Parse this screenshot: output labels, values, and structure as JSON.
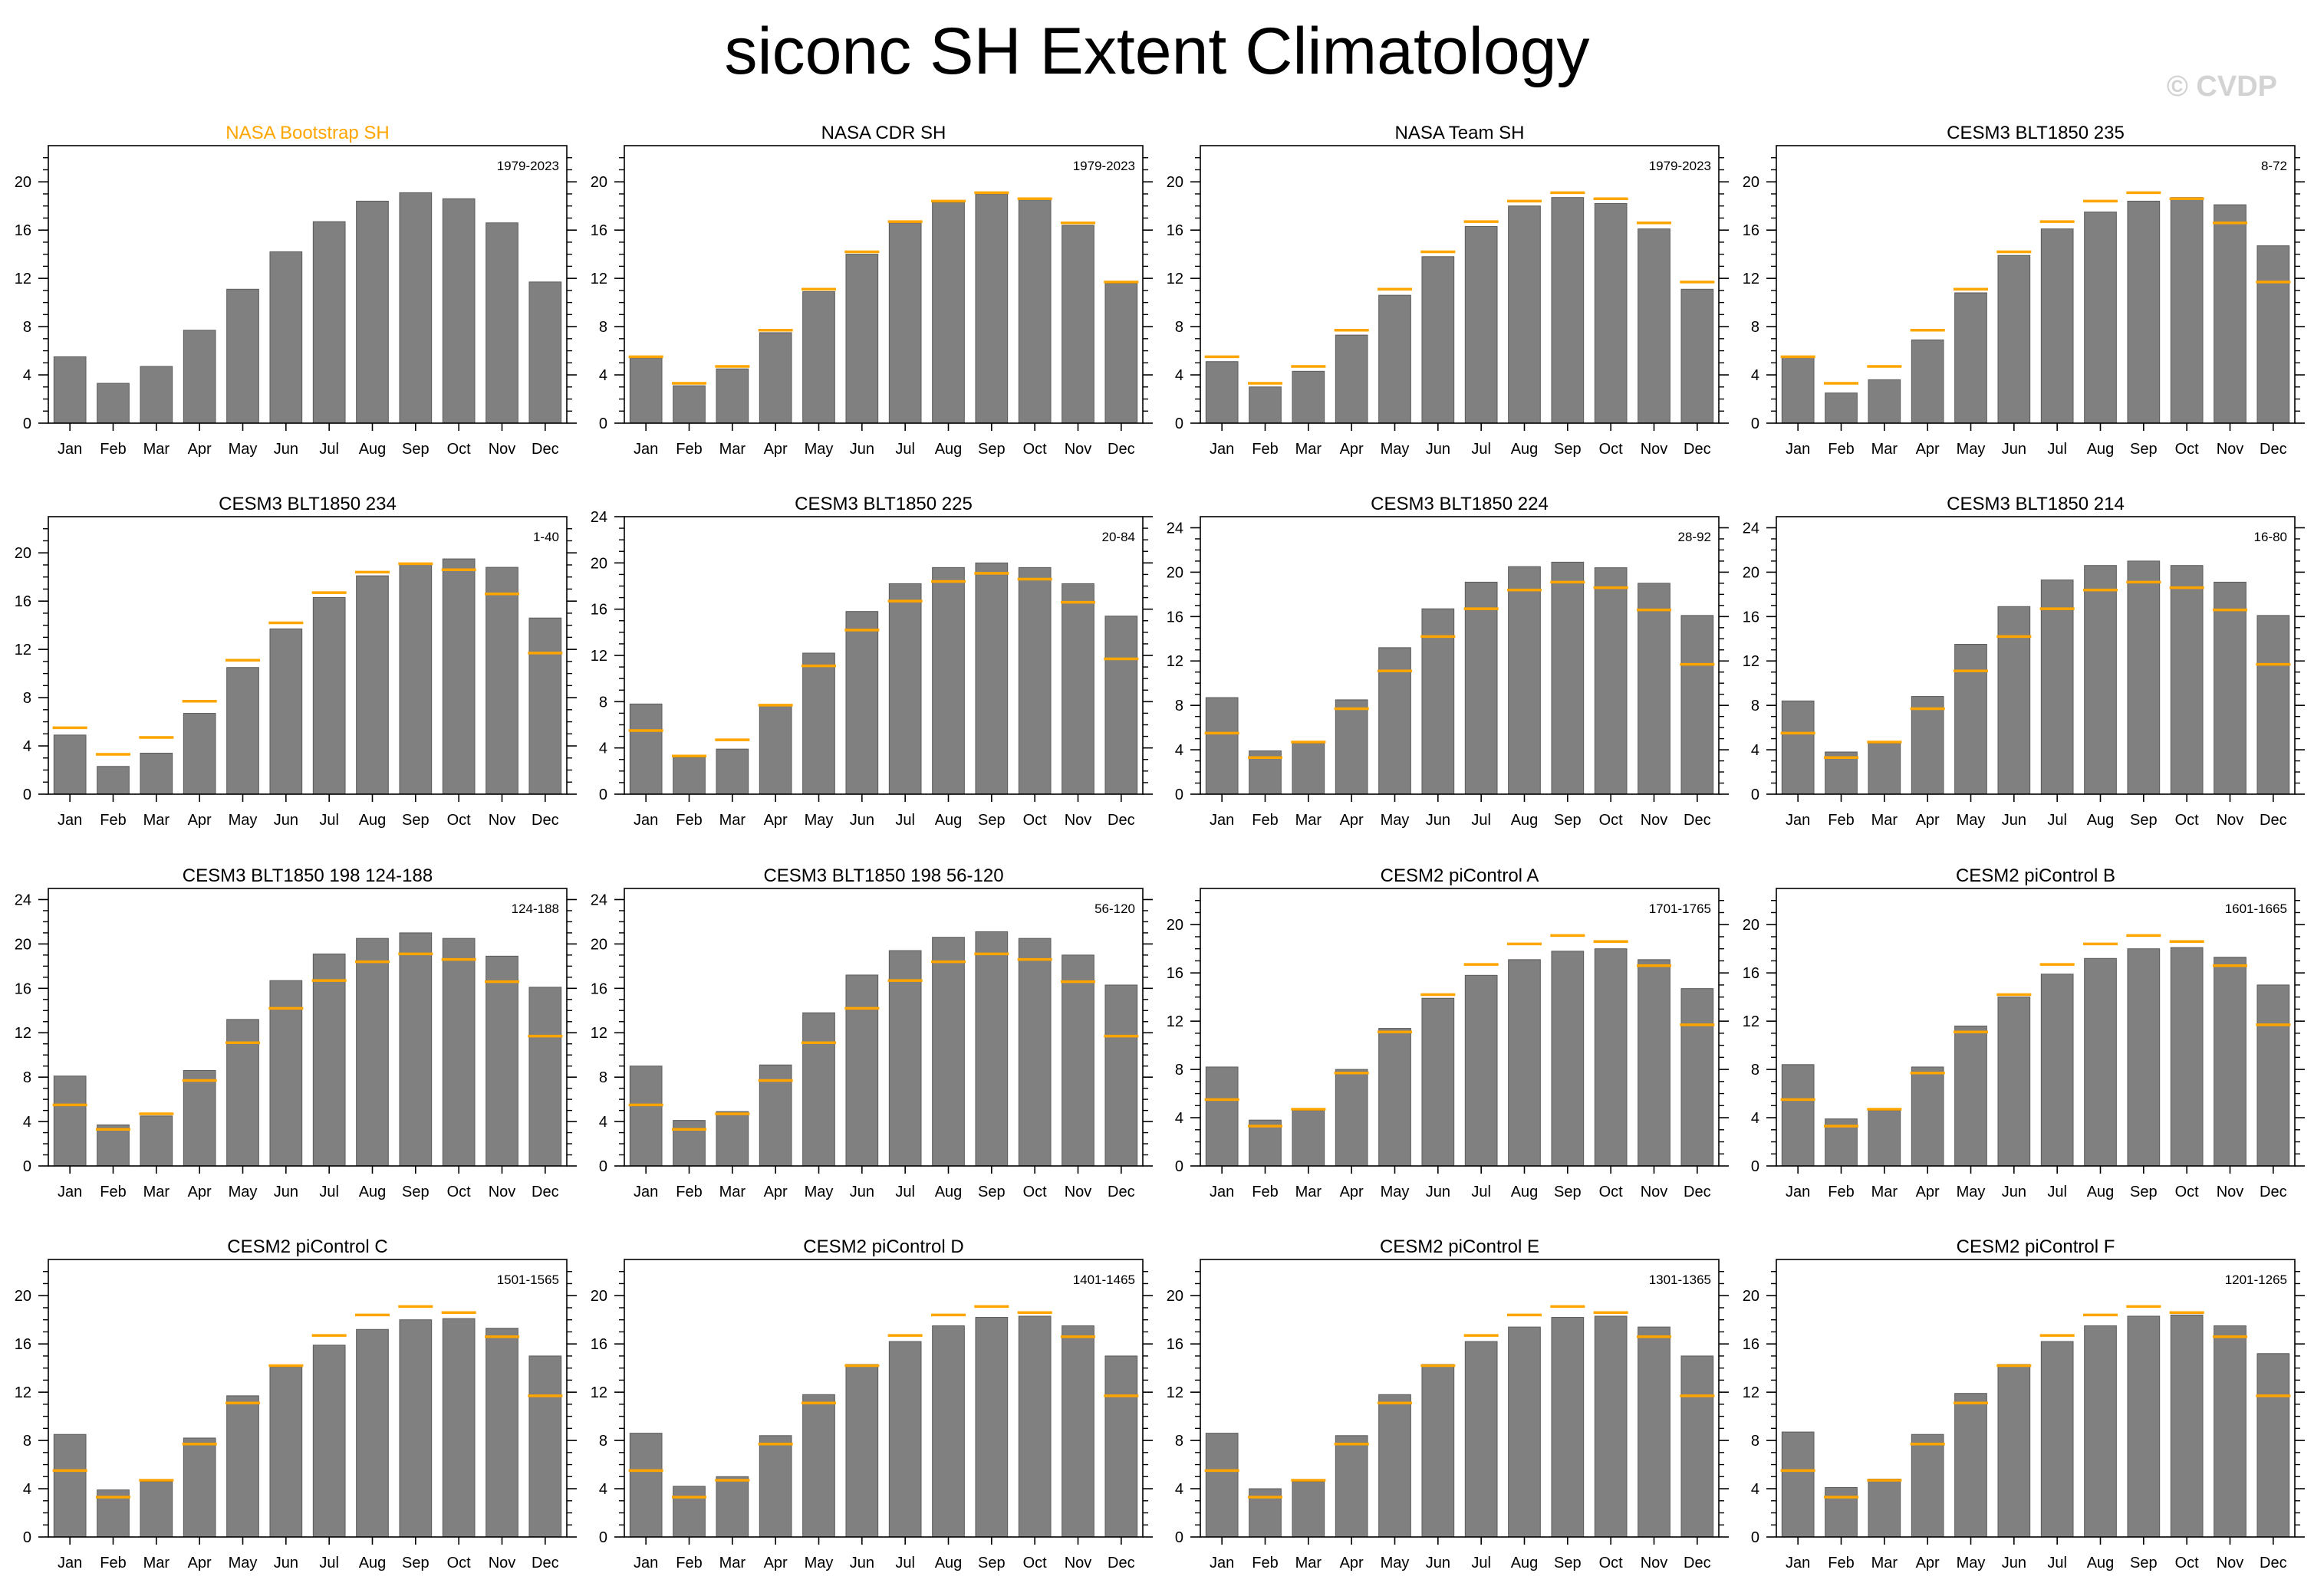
{
  "title": "siconc SH Extent Climatology",
  "watermark": "© CVDP",
  "colors": {
    "bar": "#808080",
    "reference": "#FFA500",
    "highlight_title": "#FFA500",
    "axis": "#000000"
  },
  "chart_data": [
    {
      "type": "bar",
      "title": "NASA Bootstrap SH",
      "years": "1979-2023",
      "categories": [
        "Jan",
        "Feb",
        "Mar",
        "Apr",
        "May",
        "Jun",
        "Jul",
        "Aug",
        "Sep",
        "Oct",
        "Nov",
        "Dec"
      ],
      "values": [
        5.5,
        3.3,
        4.7,
        7.7,
        11.1,
        14.2,
        16.7,
        18.4,
        19.1,
        18.6,
        16.6,
        11.7
      ],
      "reference": [],
      "ylim": [
        0,
        23
      ],
      "yticks": [
        0,
        4,
        8,
        12,
        16,
        20
      ],
      "title_highlight": true
    },
    {
      "type": "bar",
      "title": "NASA CDR SH",
      "years": "1979-2023",
      "categories": [
        "Jan",
        "Feb",
        "Mar",
        "Apr",
        "May",
        "Jun",
        "Jul",
        "Aug",
        "Sep",
        "Oct",
        "Nov",
        "Dec"
      ],
      "values": [
        5.4,
        3.1,
        4.5,
        7.5,
        10.9,
        14.0,
        16.6,
        18.3,
        19.0,
        18.5,
        16.4,
        11.6
      ],
      "reference": [
        5.5,
        3.3,
        4.7,
        7.7,
        11.1,
        14.2,
        16.7,
        18.4,
        19.1,
        18.6,
        16.6,
        11.7
      ],
      "ylim": [
        0,
        23
      ],
      "yticks": [
        0,
        4,
        8,
        12,
        16,
        20
      ]
    },
    {
      "type": "bar",
      "title": "NASA Team SH",
      "years": "1979-2023",
      "categories": [
        "Jan",
        "Feb",
        "Mar",
        "Apr",
        "May",
        "Jun",
        "Jul",
        "Aug",
        "Sep",
        "Oct",
        "Nov",
        "Dec"
      ],
      "values": [
        5.1,
        3.0,
        4.3,
        7.3,
        10.6,
        13.8,
        16.3,
        18.0,
        18.7,
        18.2,
        16.1,
        11.1
      ],
      "reference": [
        5.5,
        3.3,
        4.7,
        7.7,
        11.1,
        14.2,
        16.7,
        18.4,
        19.1,
        18.6,
        16.6,
        11.7
      ],
      "ylim": [
        0,
        23
      ],
      "yticks": [
        0,
        4,
        8,
        12,
        16,
        20
      ]
    },
    {
      "type": "bar",
      "title": "CESM3 BLT1850 235",
      "years": "8-72",
      "categories": [
        "Jan",
        "Feb",
        "Mar",
        "Apr",
        "May",
        "Jun",
        "Jul",
        "Aug",
        "Sep",
        "Oct",
        "Nov",
        "Dec"
      ],
      "values": [
        5.5,
        2.5,
        3.6,
        6.9,
        10.8,
        13.9,
        16.1,
        17.5,
        18.4,
        18.7,
        18.1,
        14.7
      ],
      "reference": [
        5.5,
        3.3,
        4.7,
        7.7,
        11.1,
        14.2,
        16.7,
        18.4,
        19.1,
        18.6,
        16.6,
        11.7
      ],
      "ylim": [
        0,
        23
      ],
      "yticks": [
        0,
        4,
        8,
        12,
        16,
        20
      ]
    },
    {
      "type": "bar",
      "title": "CESM3 BLT1850 234",
      "years": "1-40",
      "categories": [
        "Jan",
        "Feb",
        "Mar",
        "Apr",
        "May",
        "Jun",
        "Jul",
        "Aug",
        "Sep",
        "Oct",
        "Nov",
        "Dec"
      ],
      "values": [
        4.9,
        2.3,
        3.4,
        6.7,
        10.5,
        13.7,
        16.3,
        18.1,
        19.1,
        19.5,
        18.8,
        14.6
      ],
      "reference": [
        5.5,
        3.3,
        4.7,
        7.7,
        11.1,
        14.2,
        16.7,
        18.4,
        19.1,
        18.6,
        16.6,
        11.7
      ],
      "ylim": [
        0,
        23
      ],
      "yticks": [
        0,
        4,
        8,
        12,
        16,
        20
      ]
    },
    {
      "type": "bar",
      "title": "CESM3 BLT1850 225",
      "years": "20-84",
      "categories": [
        "Jan",
        "Feb",
        "Mar",
        "Apr",
        "May",
        "Jun",
        "Jul",
        "Aug",
        "Sep",
        "Oct",
        "Nov",
        "Dec"
      ],
      "values": [
        7.8,
        3.2,
        3.9,
        7.7,
        12.2,
        15.8,
        18.2,
        19.6,
        20.0,
        19.6,
        18.2,
        15.4
      ],
      "reference": [
        5.5,
        3.3,
        4.7,
        7.7,
        11.1,
        14.2,
        16.7,
        18.4,
        19.1,
        18.6,
        16.6,
        11.7
      ],
      "ylim": [
        0,
        24
      ],
      "yticks": [
        0,
        4,
        8,
        12,
        16,
        20,
        24
      ]
    },
    {
      "type": "bar",
      "title": "CESM3 BLT1850 224",
      "years": "28-92",
      "categories": [
        "Jan",
        "Feb",
        "Mar",
        "Apr",
        "May",
        "Jun",
        "Jul",
        "Aug",
        "Sep",
        "Oct",
        "Nov",
        "Dec"
      ],
      "values": [
        8.7,
        3.9,
        4.6,
        8.5,
        13.2,
        16.7,
        19.1,
        20.5,
        20.9,
        20.4,
        19.0,
        16.1
      ],
      "reference": [
        5.5,
        3.3,
        4.7,
        7.7,
        11.1,
        14.2,
        16.7,
        18.4,
        19.1,
        18.6,
        16.6,
        11.7
      ],
      "ylim": [
        0,
        25
      ],
      "yticks": [
        0,
        4,
        8,
        12,
        16,
        20,
        24
      ]
    },
    {
      "type": "bar",
      "title": "CESM3 BLT1850 214",
      "years": "16-80",
      "categories": [
        "Jan",
        "Feb",
        "Mar",
        "Apr",
        "May",
        "Jun",
        "Jul",
        "Aug",
        "Sep",
        "Oct",
        "Nov",
        "Dec"
      ],
      "values": [
        8.4,
        3.8,
        4.6,
        8.8,
        13.5,
        16.9,
        19.3,
        20.6,
        21.0,
        20.6,
        19.1,
        16.1
      ],
      "reference": [
        5.5,
        3.3,
        4.7,
        7.7,
        11.1,
        14.2,
        16.7,
        18.4,
        19.1,
        18.6,
        16.6,
        11.7
      ],
      "ylim": [
        0,
        25
      ],
      "yticks": [
        0,
        4,
        8,
        12,
        16,
        20,
        24
      ]
    },
    {
      "type": "bar",
      "title": "CESM3 BLT1850 198 124-188",
      "years": "124-188",
      "categories": [
        "Jan",
        "Feb",
        "Mar",
        "Apr",
        "May",
        "Jun",
        "Jul",
        "Aug",
        "Sep",
        "Oct",
        "Nov",
        "Dec"
      ],
      "values": [
        8.1,
        3.7,
        4.5,
        8.6,
        13.2,
        16.7,
        19.1,
        20.5,
        21.0,
        20.5,
        18.9,
        16.1
      ],
      "reference": [
        5.5,
        3.3,
        4.7,
        7.7,
        11.1,
        14.2,
        16.7,
        18.4,
        19.1,
        18.6,
        16.6,
        11.7
      ],
      "ylim": [
        0,
        25
      ],
      "yticks": [
        0,
        4,
        8,
        12,
        16,
        20,
        24
      ]
    },
    {
      "type": "bar",
      "title": "CESM3 BLT1850 198 56-120",
      "years": "56-120",
      "categories": [
        "Jan",
        "Feb",
        "Mar",
        "Apr",
        "May",
        "Jun",
        "Jul",
        "Aug",
        "Sep",
        "Oct",
        "Nov",
        "Dec"
      ],
      "values": [
        9.0,
        4.1,
        4.9,
        9.1,
        13.8,
        17.2,
        19.4,
        20.6,
        21.1,
        20.5,
        19.0,
        16.3
      ],
      "reference": [
        5.5,
        3.3,
        4.7,
        7.7,
        11.1,
        14.2,
        16.7,
        18.4,
        19.1,
        18.6,
        16.6,
        11.7
      ],
      "ylim": [
        0,
        25
      ],
      "yticks": [
        0,
        4,
        8,
        12,
        16,
        20,
        24
      ]
    },
    {
      "type": "bar",
      "title": "CESM2 piControl A",
      "years": "1701-1765",
      "categories": [
        "Jan",
        "Feb",
        "Mar",
        "Apr",
        "May",
        "Jun",
        "Jul",
        "Aug",
        "Sep",
        "Oct",
        "Nov",
        "Dec"
      ],
      "values": [
        8.2,
        3.8,
        4.6,
        8.0,
        11.4,
        13.9,
        15.8,
        17.1,
        17.8,
        18.0,
        17.1,
        14.7
      ],
      "reference": [
        5.5,
        3.3,
        4.7,
        7.7,
        11.1,
        14.2,
        16.7,
        18.4,
        19.1,
        18.6,
        16.6,
        11.7
      ],
      "ylim": [
        0,
        23
      ],
      "yticks": [
        0,
        4,
        8,
        12,
        16,
        20
      ]
    },
    {
      "type": "bar",
      "title": "CESM2 piControl B",
      "years": "1601-1665",
      "categories": [
        "Jan",
        "Feb",
        "Mar",
        "Apr",
        "May",
        "Jun",
        "Jul",
        "Aug",
        "Sep",
        "Oct",
        "Nov",
        "Dec"
      ],
      "values": [
        8.4,
        3.9,
        4.6,
        8.2,
        11.6,
        14.0,
        15.9,
        17.2,
        18.0,
        18.1,
        17.3,
        15.0
      ],
      "reference": [
        5.5,
        3.3,
        4.7,
        7.7,
        11.1,
        14.2,
        16.7,
        18.4,
        19.1,
        18.6,
        16.6,
        11.7
      ],
      "ylim": [
        0,
        23
      ],
      "yticks": [
        0,
        4,
        8,
        12,
        16,
        20
      ]
    },
    {
      "type": "bar",
      "title": "CESM2 piControl C",
      "years": "1501-1565",
      "categories": [
        "Jan",
        "Feb",
        "Mar",
        "Apr",
        "May",
        "Jun",
        "Jul",
        "Aug",
        "Sep",
        "Oct",
        "Nov",
        "Dec"
      ],
      "values": [
        8.5,
        3.9,
        4.6,
        8.2,
        11.7,
        14.1,
        15.9,
        17.2,
        18.0,
        18.1,
        17.3,
        15.0
      ],
      "reference": [
        5.5,
        3.3,
        4.7,
        7.7,
        11.1,
        14.2,
        16.7,
        18.4,
        19.1,
        18.6,
        16.6,
        11.7
      ],
      "ylim": [
        0,
        23
      ],
      "yticks": [
        0,
        4,
        8,
        12,
        16,
        20
      ]
    },
    {
      "type": "bar",
      "title": "CESM2 piControl D",
      "years": "1401-1465",
      "categories": [
        "Jan",
        "Feb",
        "Mar",
        "Apr",
        "May",
        "Jun",
        "Jul",
        "Aug",
        "Sep",
        "Oct",
        "Nov",
        "Dec"
      ],
      "values": [
        8.6,
        4.2,
        5.0,
        8.4,
        11.8,
        14.3,
        16.2,
        17.5,
        18.2,
        18.3,
        17.5,
        15.0
      ],
      "reference": [
        5.5,
        3.3,
        4.7,
        7.7,
        11.1,
        14.2,
        16.7,
        18.4,
        19.1,
        18.6,
        16.6,
        11.7
      ],
      "ylim": [
        0,
        23
      ],
      "yticks": [
        0,
        4,
        8,
        12,
        16,
        20
      ]
    },
    {
      "type": "bar",
      "title": "CESM2 piControl E",
      "years": "1301-1365",
      "categories": [
        "Jan",
        "Feb",
        "Mar",
        "Apr",
        "May",
        "Jun",
        "Jul",
        "Aug",
        "Sep",
        "Oct",
        "Nov",
        "Dec"
      ],
      "values": [
        8.6,
        4.0,
        4.6,
        8.4,
        11.8,
        14.3,
        16.2,
        17.4,
        18.2,
        18.3,
        17.4,
        15.0
      ],
      "reference": [
        5.5,
        3.3,
        4.7,
        7.7,
        11.1,
        14.2,
        16.7,
        18.4,
        19.1,
        18.6,
        16.6,
        11.7
      ],
      "ylim": [
        0,
        23
      ],
      "yticks": [
        0,
        4,
        8,
        12,
        16,
        20
      ]
    },
    {
      "type": "bar",
      "title": "CESM2 piControl F",
      "years": "1201-1265",
      "categories": [
        "Jan",
        "Feb",
        "Mar",
        "Apr",
        "May",
        "Jun",
        "Jul",
        "Aug",
        "Sep",
        "Oct",
        "Nov",
        "Dec"
      ],
      "values": [
        8.7,
        4.1,
        4.8,
        8.5,
        11.9,
        14.3,
        16.2,
        17.5,
        18.3,
        18.4,
        17.5,
        15.2
      ],
      "reference": [
        5.5,
        3.3,
        4.7,
        7.7,
        11.1,
        14.2,
        16.7,
        18.4,
        19.1,
        18.6,
        16.6,
        11.7
      ],
      "ylim": [
        0,
        23
      ],
      "yticks": [
        0,
        4,
        8,
        12,
        16,
        20
      ]
    }
  ]
}
